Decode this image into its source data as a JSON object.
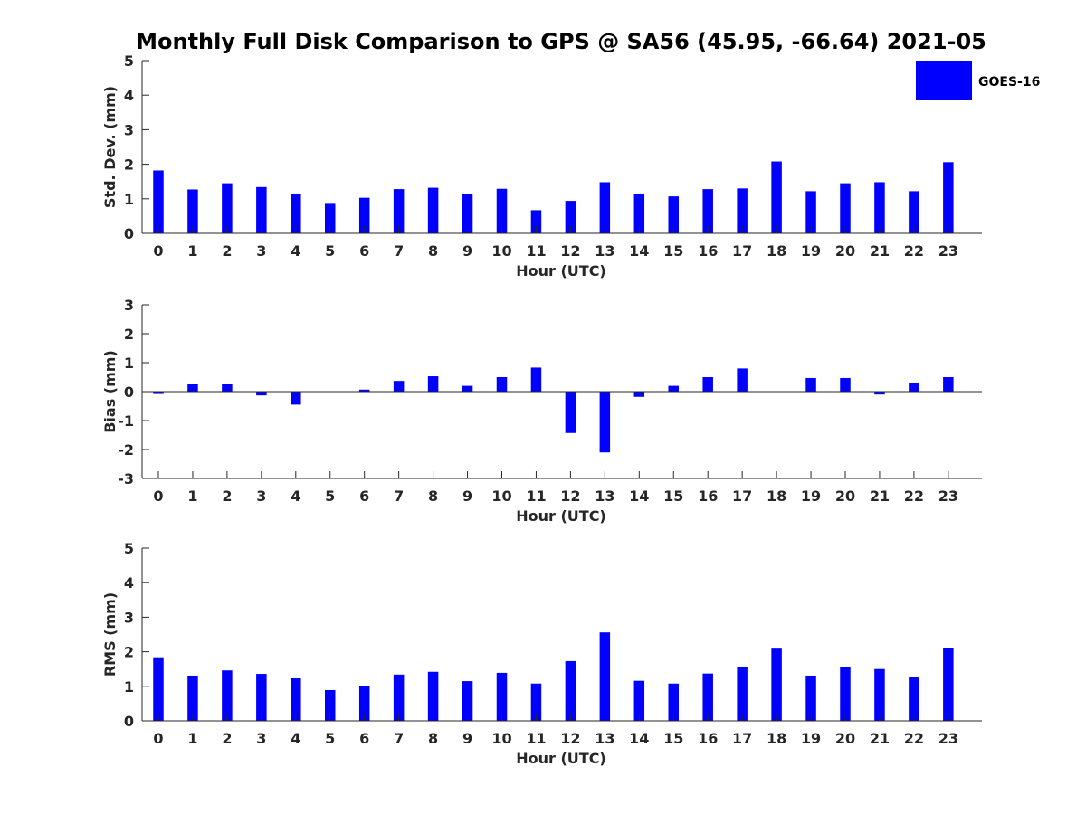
{
  "title": "Monthly Full Disk Comparison to GPS @ SA56 (45.95, -66.64) 2021-05",
  "legend": {
    "label": "GOES-16",
    "color": "#0000ff",
    "placement": "top-right"
  },
  "chart_data": [
    {
      "type": "bar",
      "name": "std-dev",
      "categories": [
        "0",
        "1",
        "2",
        "3",
        "4",
        "5",
        "6",
        "7",
        "8",
        "9",
        "10",
        "11",
        "12",
        "13",
        "14",
        "15",
        "16",
        "17",
        "18",
        "19",
        "20",
        "21",
        "22",
        "23"
      ],
      "series": [
        {
          "name": "GOES-16",
          "color": "#0000ff",
          "values": [
            1.82,
            1.27,
            1.45,
            1.34,
            1.14,
            0.88,
            1.03,
            1.28,
            1.32,
            1.14,
            1.29,
            0.67,
            0.94,
            1.48,
            1.15,
            1.07,
            1.28,
            1.3,
            2.08,
            1.22,
            1.45,
            1.48,
            1.22,
            2.06
          ]
        }
      ],
      "xlabel": "Hour (UTC)",
      "ylabel": "Std. Dev. (mm)",
      "ylim": [
        0,
        5
      ],
      "yticks": [
        "0",
        "1",
        "2",
        "3",
        "4",
        "5"
      ],
      "grid": false
    },
    {
      "type": "bar",
      "name": "bias",
      "categories": [
        "0",
        "1",
        "2",
        "3",
        "4",
        "5",
        "6",
        "7",
        "8",
        "9",
        "10",
        "11",
        "12",
        "13",
        "14",
        "15",
        "16",
        "17",
        "18",
        "19",
        "20",
        "21",
        "22",
        "23"
      ],
      "series": [
        {
          "name": "GOES-16",
          "color": "#0000ff",
          "values": [
            -0.08,
            0.25,
            0.25,
            -0.13,
            -0.45,
            0.0,
            0.07,
            0.37,
            0.53,
            0.2,
            0.5,
            0.83,
            -1.43,
            -2.1,
            -0.18,
            0.2,
            0.5,
            0.8,
            0.0,
            0.47,
            0.47,
            -0.1,
            0.3,
            0.5
          ]
        }
      ],
      "xlabel": "Hour (UTC)",
      "ylabel": "Bias (mm)",
      "ylim": [
        -3,
        3
      ],
      "yticks": [
        "-3",
        "-2",
        "-1",
        "0",
        "1",
        "2",
        "3"
      ],
      "grid": false
    },
    {
      "type": "bar",
      "name": "rms",
      "categories": [
        "0",
        "1",
        "2",
        "3",
        "4",
        "5",
        "6",
        "7",
        "8",
        "9",
        "10",
        "11",
        "12",
        "13",
        "14",
        "15",
        "16",
        "17",
        "18",
        "19",
        "20",
        "21",
        "22",
        "23"
      ],
      "series": [
        {
          "name": "GOES-16",
          "color": "#0000ff",
          "values": [
            1.84,
            1.31,
            1.46,
            1.36,
            1.23,
            0.89,
            1.02,
            1.34,
            1.42,
            1.15,
            1.39,
            1.08,
            1.73,
            2.56,
            1.16,
            1.08,
            1.37,
            1.55,
            2.09,
            1.31,
            1.55,
            1.5,
            1.26,
            2.12
          ]
        }
      ],
      "xlabel": "Hour (UTC)",
      "ylabel": "RMS (mm)",
      "ylim": [
        0,
        5
      ],
      "yticks": [
        "0",
        "1",
        "2",
        "3",
        "4",
        "5"
      ],
      "grid": false
    }
  ]
}
